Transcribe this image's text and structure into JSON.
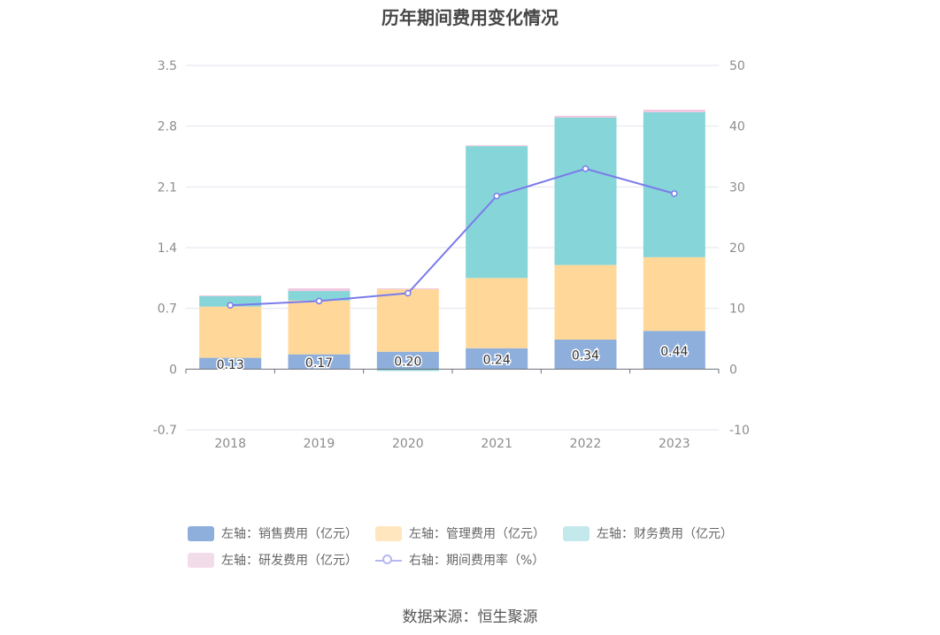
{
  "title": "历年期间费用变化情况",
  "source": "数据来源：恒生聚源",
  "colors": {
    "sales": "#8eaedc",
    "admin": "#ffd899",
    "finance": "#86d5d9",
    "rnd": "#f1c7df",
    "rate": "#7b7bea",
    "grid": "#e3e5ee",
    "axis_text": "#8c8c8c"
  },
  "chart_data": {
    "type": "bar",
    "stacked": true,
    "categories": [
      "2018",
      "2019",
      "2020",
      "2021",
      "2022",
      "2023"
    ],
    "y_left": {
      "min": -0.7,
      "max": 3.5,
      "ticks": [
        "3.5",
        "2.8",
        "2.1",
        "1.4",
        "0.7",
        "0",
        "-0.7"
      ]
    },
    "y_right": {
      "min": -10,
      "max": 50,
      "ticks": [
        "50",
        "40",
        "30",
        "20",
        "10",
        "0",
        "-10"
      ]
    },
    "series": [
      {
        "name": "左轴：销售费用（亿元）",
        "key": "sales",
        "axis": "left",
        "values": [
          0.13,
          0.17,
          0.2,
          0.24,
          0.34,
          0.44
        ],
        "labels": [
          "0.13",
          "0.17",
          "0.20",
          "0.24",
          "0.34",
          "0.44"
        ]
      },
      {
        "name": "左轴：管理费用（亿元）",
        "key": "admin",
        "axis": "left",
        "values": [
          0.59,
          0.62,
          0.72,
          0.81,
          0.86,
          0.85
        ]
      },
      {
        "name": "左轴：财务费用（亿元）",
        "key": "finance",
        "axis": "left",
        "values": [
          0.12,
          0.11,
          -0.02,
          1.52,
          1.7,
          1.67
        ]
      },
      {
        "name": "左轴：研发费用（亿元）",
        "key": "rnd",
        "axis": "left",
        "values": [
          0.01,
          0.03,
          0.01,
          0.01,
          0.02,
          0.03
        ]
      },
      {
        "name": "右轴：期间费用率（%）",
        "key": "rate",
        "axis": "right",
        "type": "line",
        "values": [
          10.5,
          11.2,
          12.5,
          28.5,
          33.0,
          28.9
        ]
      }
    ],
    "legend_position": "bottom",
    "grid": true
  }
}
